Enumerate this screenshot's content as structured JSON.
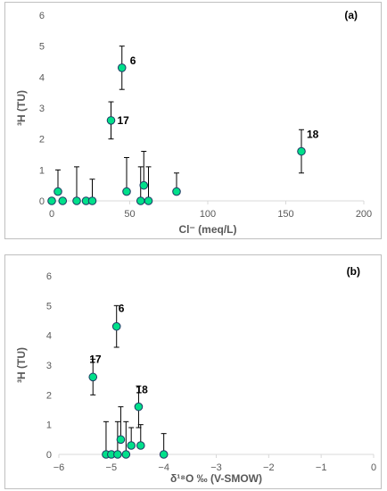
{
  "chart_data": [
    {
      "type": "scatter",
      "panel_label": "(a)",
      "xlabel": "Cl⁻ (meq/L)",
      "ylabel": "³H (TU)",
      "xlim": [
        0,
        200
      ],
      "ylim": [
        0,
        6
      ],
      "xticks": [
        0,
        50,
        100,
        150,
        200
      ],
      "xtick_labels": [
        "0",
        "50",
        "100",
        "150",
        "200"
      ],
      "yticks": [
        0,
        1,
        2,
        3,
        4,
        5,
        6
      ],
      "ytick_labels": [
        "0",
        "1",
        "2",
        "3",
        "4",
        "5",
        "6"
      ],
      "grid": false,
      "legend": "none",
      "marker_color": "#00e08a",
      "error_bar": "positive, with cap",
      "points": [
        {
          "x": 0,
          "y": 0,
          "err_plus": 0
        },
        {
          "x": 4,
          "y": 0.3,
          "err_plus": 0.7
        },
        {
          "x": 7,
          "y": 0,
          "err_plus": 0
        },
        {
          "x": 16,
          "y": 0,
          "err_plus": 1.1
        },
        {
          "x": 22,
          "y": 0,
          "err_plus": 0
        },
        {
          "x": 26,
          "y": 0,
          "err_plus": 0.7
        },
        {
          "x": 38,
          "y": 2.6,
          "err_plus": 0.6,
          "err_minus": 0.6,
          "label": "17"
        },
        {
          "x": 45,
          "y": 4.3,
          "err_plus": 0.7,
          "err_minus": 0.7,
          "label": "6"
        },
        {
          "x": 48,
          "y": 0.3,
          "err_plus": 1.1
        },
        {
          "x": 57,
          "y": 0,
          "err_plus": 1.1
        },
        {
          "x": 59,
          "y": 0.5,
          "err_plus": 1.1
        },
        {
          "x": 62,
          "y": 0,
          "err_plus": 1.1
        },
        {
          "x": 80,
          "y": 0.3,
          "err_plus": 0.6
        },
        {
          "x": 160,
          "y": 1.6,
          "err_plus": 0.7,
          "err_minus": 0.7,
          "label": "18"
        }
      ]
    },
    {
      "type": "scatter",
      "panel_label": "(b)",
      "xlabel": "δ¹⁸O ‰ (V-SMOW)",
      "ylabel": "³H (TU)",
      "xlim": [
        -6,
        0
      ],
      "ylim": [
        0,
        6
      ],
      "xticks": [
        -6,
        -5,
        -4,
        -3,
        -2,
        -1,
        0
      ],
      "xtick_labels": [
        "−6",
        "−5",
        "−4",
        "−3",
        "−2",
        "−1",
        "0"
      ],
      "yticks": [
        0,
        1,
        2,
        3,
        4,
        5,
        6
      ],
      "ytick_labels": [
        "0",
        "1",
        "2",
        "3",
        "4",
        "5",
        "6"
      ],
      "grid": false,
      "legend": "none",
      "marker_color": "#00e08a",
      "error_bar": "positive, with cap",
      "points": [
        {
          "x": -5.35,
          "y": 2.6,
          "err_plus": 0.6,
          "err_minus": 0.6,
          "label": "17"
        },
        {
          "x": -4.9,
          "y": 4.3,
          "err_plus": 0.7,
          "err_minus": 0.7,
          "label": "6"
        },
        {
          "x": -5.1,
          "y": 0,
          "err_plus": 1.1
        },
        {
          "x": -5.0,
          "y": 0,
          "err_plus": 0
        },
        {
          "x": -4.88,
          "y": 0,
          "err_plus": 1.1
        },
        {
          "x": -4.82,
          "y": 0.5,
          "err_plus": 1.1
        },
        {
          "x": -4.72,
          "y": 0,
          "err_plus": 1.1
        },
        {
          "x": -4.62,
          "y": 0.3,
          "err_plus": 0.6
        },
        {
          "x": -4.48,
          "y": 1.6,
          "err_plus": 0.7,
          "err_minus": 0.7,
          "label": "18"
        },
        {
          "x": -4.44,
          "y": 0.3,
          "err_plus": 0.7
        },
        {
          "x": -4.0,
          "y": 0,
          "err_plus": 0.7
        }
      ]
    }
  ]
}
